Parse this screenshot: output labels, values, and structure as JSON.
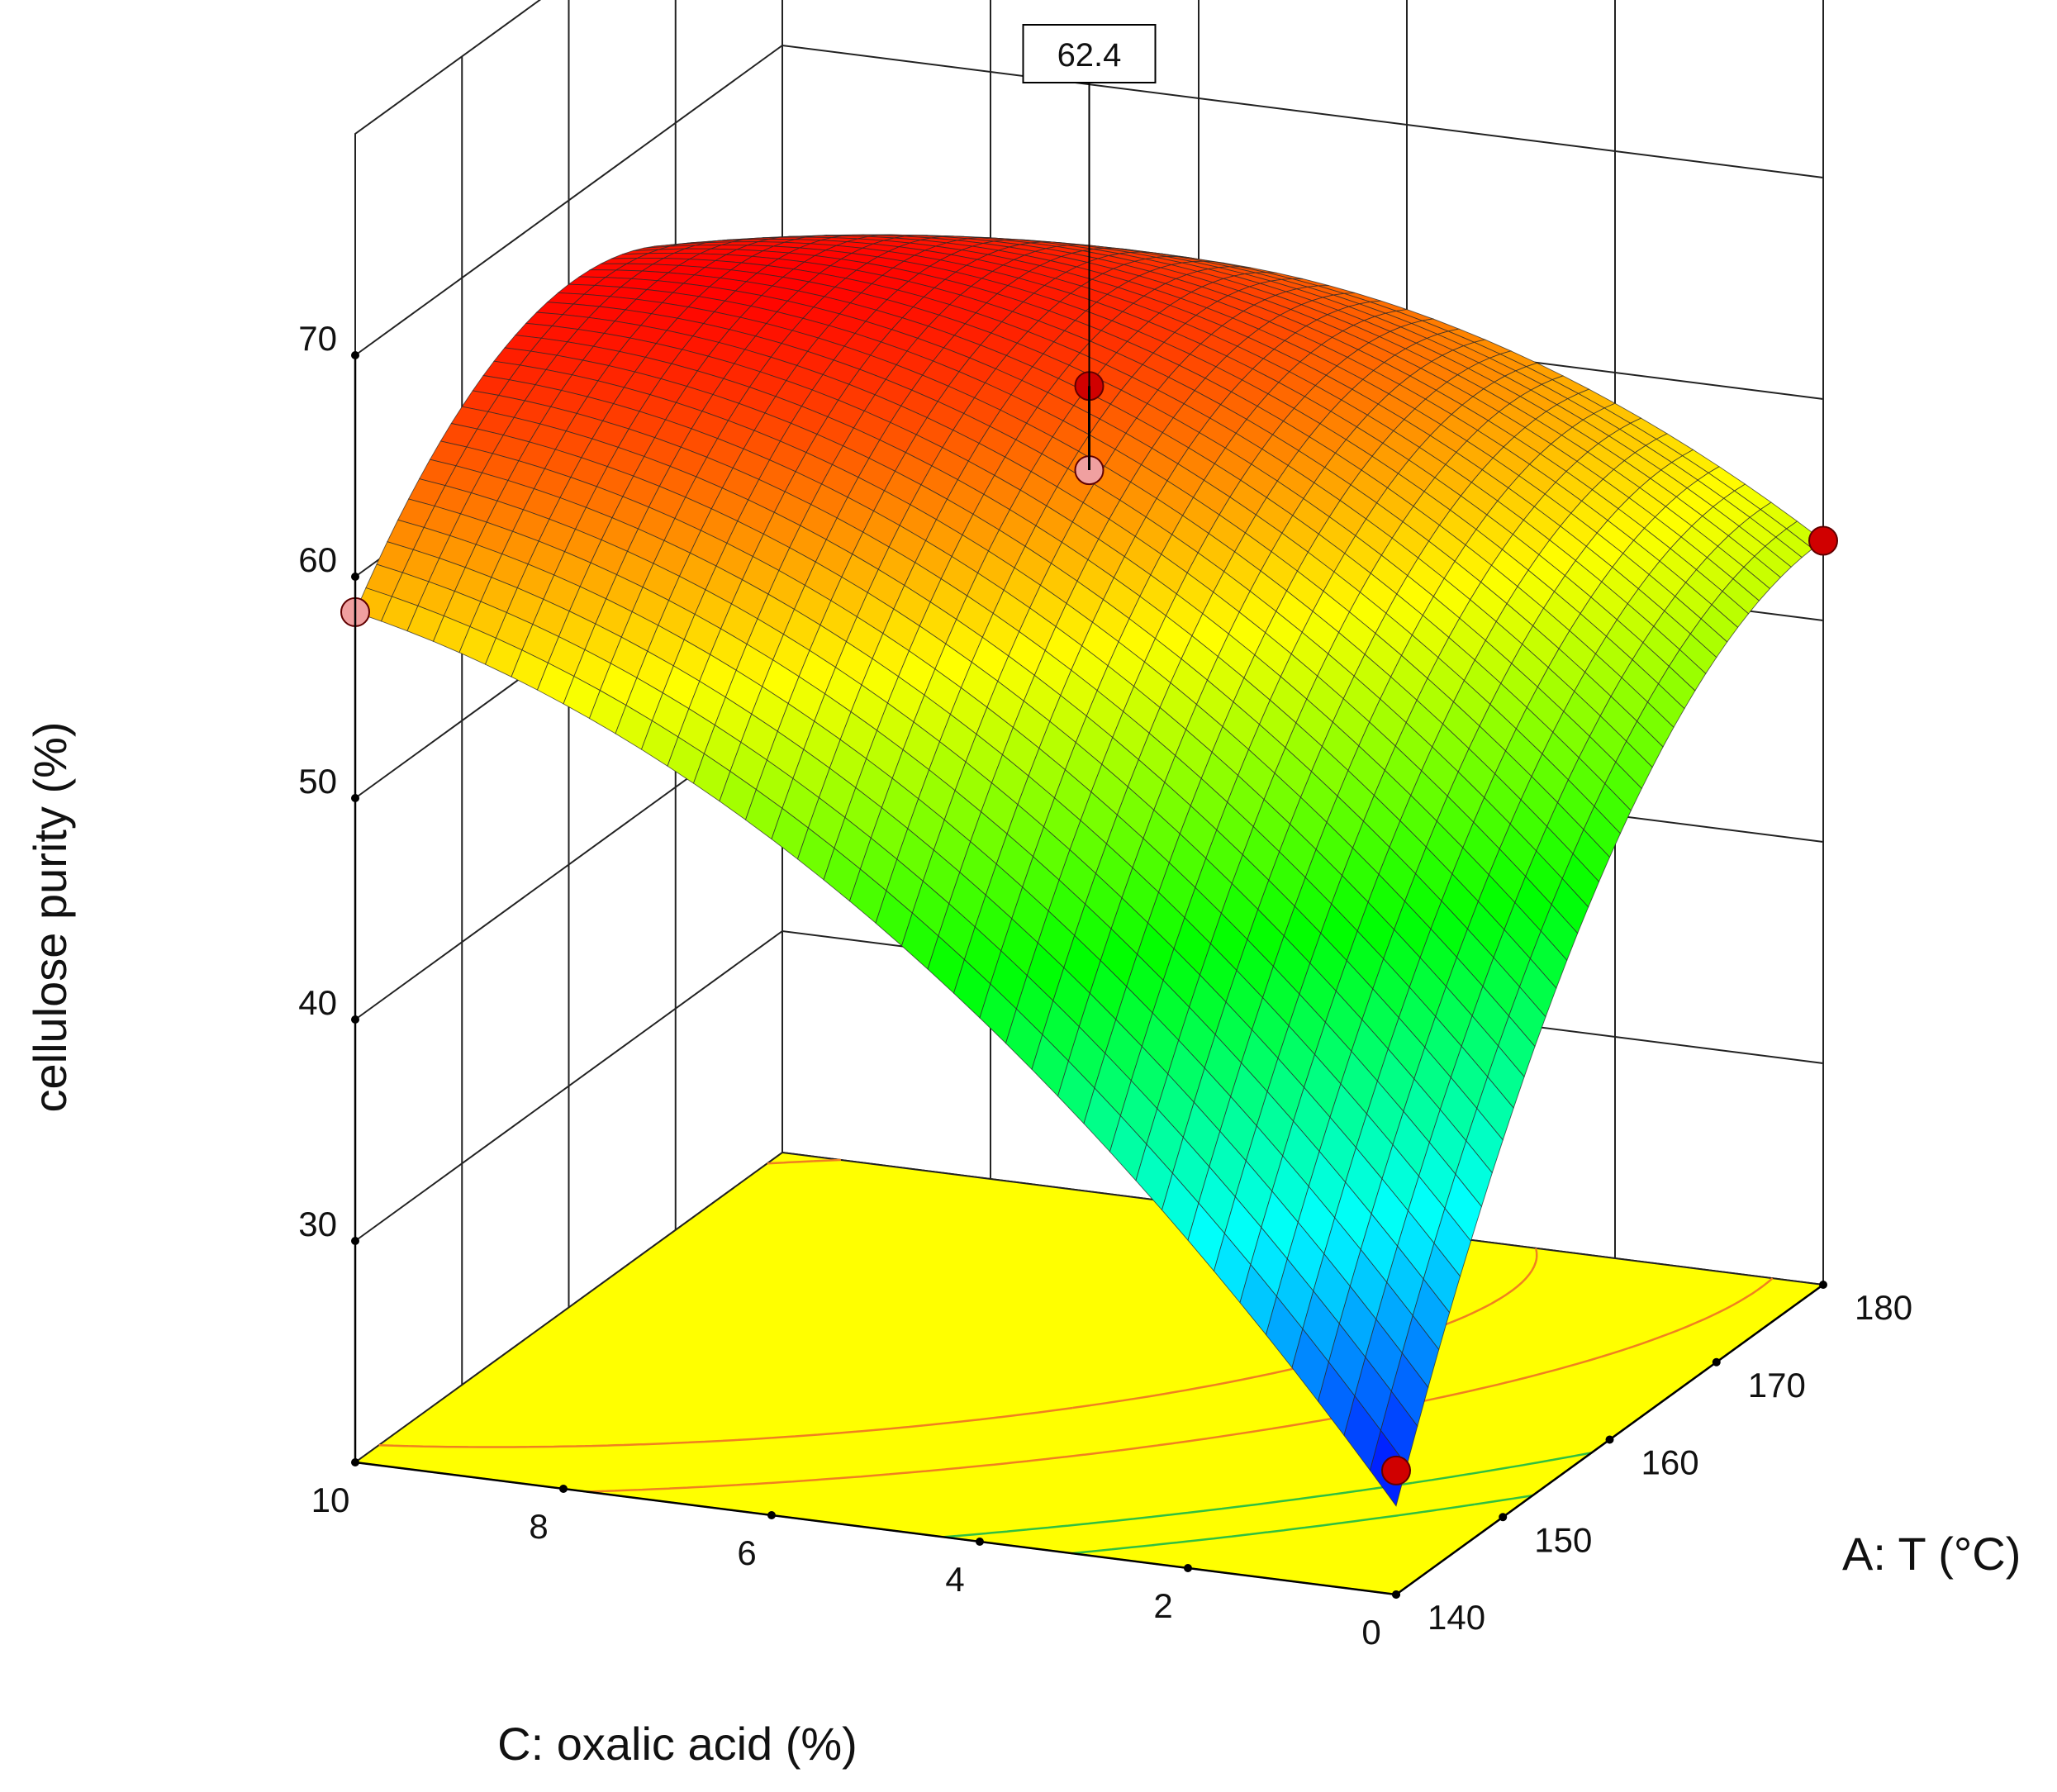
{
  "chart_data": {
    "type": "surface3d",
    "title": "",
    "zlabel": "cellulose purity (%)",
    "xlabel": "C: oxalic acid (%)",
    "ylabel": "A: T (°C)",
    "zlim": [
      20,
      70
    ],
    "z_ticks": [
      "30",
      "40",
      "50",
      "60",
      "70"
    ],
    "x_range": [
      0,
      10
    ],
    "x_ticks": [
      "0",
      "2",
      "4",
      "6",
      "8",
      "10"
    ],
    "y_range": [
      140,
      180
    ],
    "y_ticks": [
      "140",
      "150",
      "160",
      "170",
      "180"
    ],
    "surface_model": {
      "description_of_form": "quadratic response surface",
      "z_at_center": 62.4,
      "corner_values": {
        "oxalic_0_T_140": 24.0,
        "oxalic_10_T_140": 58.4,
        "oxalic_0_T_180": 53.6,
        "oxalic_10_T_180": 59.0
      }
    },
    "design_points": [
      {
        "oxalic_acid": 5,
        "T": 160,
        "purity": 64.6,
        "above_surface": true
      },
      {
        "oxalic_acid": 5,
        "T": 160,
        "purity": 60.8,
        "above_surface": false
      },
      {
        "oxalic_acid": 10,
        "T": 140,
        "purity": 58.4,
        "above_surface": false
      },
      {
        "oxalic_acid": 0,
        "T": 180,
        "purity": 53.6,
        "above_surface": true
      },
      {
        "oxalic_acid": 0,
        "T": 140,
        "purity": 25.6,
        "above_surface": true
      }
    ],
    "callout": {
      "label": "62.4",
      "oxalic_acid": 5,
      "T": 160
    },
    "floor_color": "#ffff00",
    "colormap": [
      "#0000ff",
      "#00ffff",
      "#00ff00",
      "#ffff00",
      "#ff0000"
    ]
  }
}
